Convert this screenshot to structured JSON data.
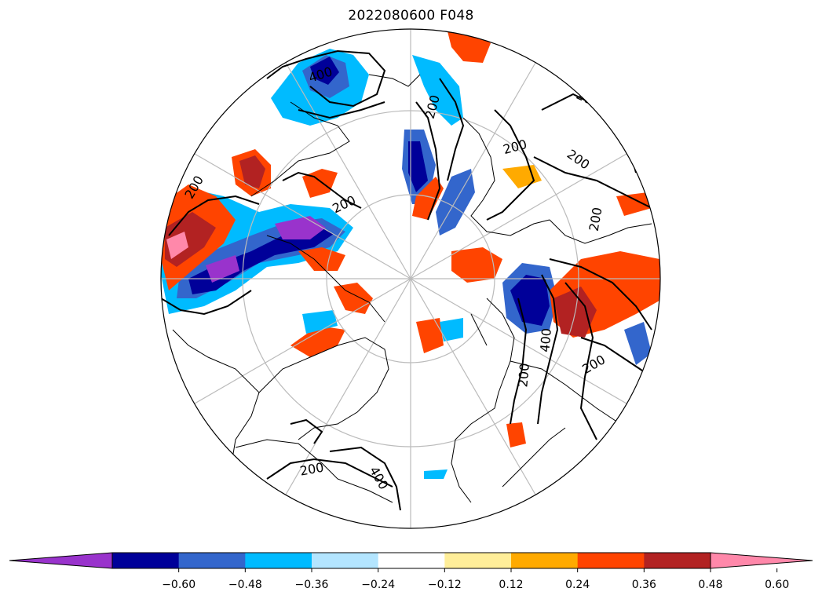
{
  "title": "2022080600 F048",
  "colorbar": {
    "colors": [
      "#9933cc",
      "#000099",
      "#3366cc",
      "#00bbff",
      "#b3e5ff",
      "#ffffff",
      "#ffee99",
      "#ffaa00",
      "#ff4400",
      "#b22222",
      "#ff88aa"
    ],
    "ticks": [
      "−0.60",
      "−0.48",
      "−0.36",
      "−0.24",
      "−0.12",
      "0.12",
      "0.24",
      "0.36",
      "0.48",
      "0.60"
    ]
  },
  "contour_labels": [
    "400",
    "200",
    "200",
    "200",
    "200",
    "200",
    "200",
    "200",
    "200",
    "400",
    "200",
    "200",
    "400"
  ],
  "map": {
    "projection": "north-polar-stereographic",
    "graticule": true,
    "coastlines": true
  }
}
